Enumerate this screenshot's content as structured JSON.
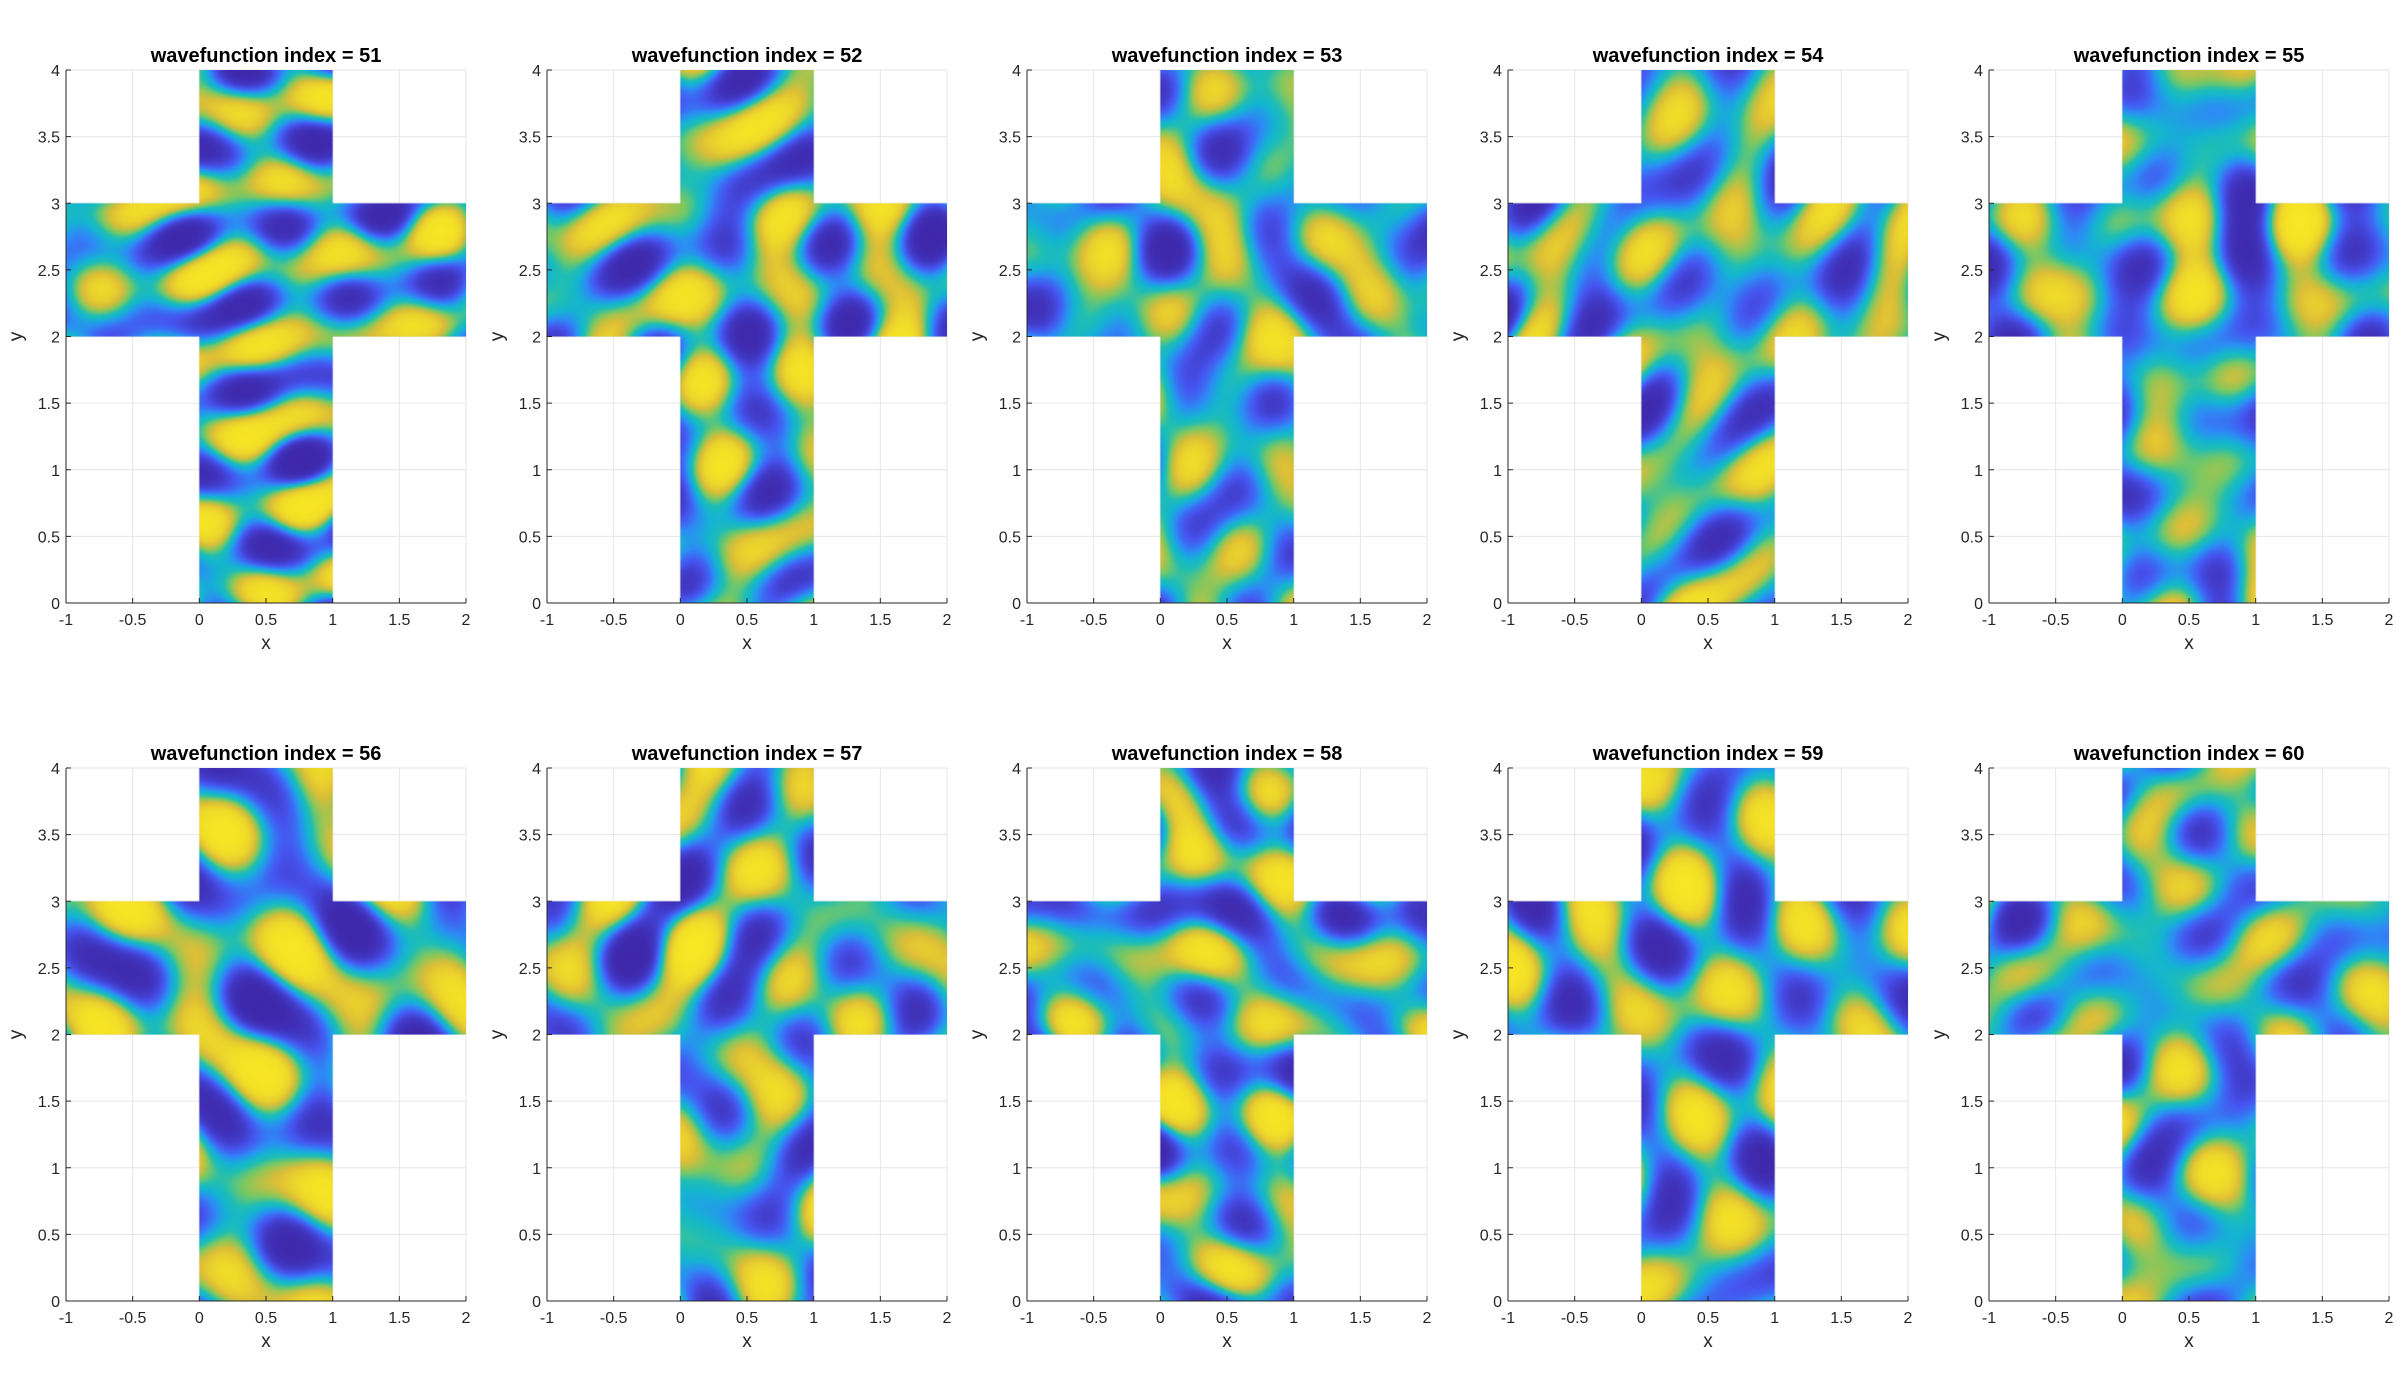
{
  "chart_data": [
    {
      "type": "heatmap",
      "title": "wavefunction index = 51",
      "xlabel": "x",
      "ylabel": "y",
      "xlim": [
        -1,
        2
      ],
      "ylim": [
        0,
        4
      ],
      "xticks": [
        "-1",
        "-0.5",
        "0",
        "0.5",
        "1",
        "1.5",
        "2"
      ],
      "yticks": [
        "0",
        "0.5",
        "1",
        "1.5",
        "2",
        "2.5",
        "3",
        "3.5",
        "4"
      ],
      "domain": "cross",
      "grid": true,
      "colormap": "parula"
    },
    {
      "type": "heatmap",
      "title": "wavefunction index = 52",
      "xlabel": "x",
      "ylabel": "y",
      "xlim": [
        -1,
        2
      ],
      "ylim": [
        0,
        4
      ],
      "xticks": [
        "-1",
        "-0.5",
        "0",
        "0.5",
        "1",
        "1.5",
        "2"
      ],
      "yticks": [
        "0",
        "0.5",
        "1",
        "1.5",
        "2",
        "2.5",
        "3",
        "3.5",
        "4"
      ],
      "domain": "cross",
      "grid": true,
      "colormap": "parula"
    },
    {
      "type": "heatmap",
      "title": "wavefunction index = 53",
      "xlabel": "x",
      "ylabel": "y",
      "xlim": [
        -1,
        2
      ],
      "ylim": [
        0,
        4
      ],
      "xticks": [
        "-1",
        "-0.5",
        "0",
        "0.5",
        "1",
        "1.5",
        "2"
      ],
      "yticks": [
        "0",
        "0.5",
        "1",
        "1.5",
        "2",
        "2.5",
        "3",
        "3.5",
        "4"
      ],
      "domain": "cross",
      "grid": true,
      "colormap": "parula"
    },
    {
      "type": "heatmap",
      "title": "wavefunction index = 54",
      "xlabel": "x",
      "ylabel": "y",
      "xlim": [
        -1,
        2
      ],
      "ylim": [
        0,
        4
      ],
      "xticks": [
        "-1",
        "-0.5",
        "0",
        "0.5",
        "1",
        "1.5",
        "2"
      ],
      "yticks": [
        "0",
        "0.5",
        "1",
        "1.5",
        "2",
        "2.5",
        "3",
        "3.5",
        "4"
      ],
      "domain": "cross",
      "grid": true,
      "colormap": "parula"
    },
    {
      "type": "heatmap",
      "title": "wavefunction index = 55",
      "xlabel": "x",
      "ylabel": "y",
      "xlim": [
        -1,
        2
      ],
      "ylim": [
        0,
        4
      ],
      "xticks": [
        "-1",
        "-0.5",
        "0",
        "0.5",
        "1",
        "1.5",
        "2"
      ],
      "yticks": [
        "0",
        "0.5",
        "1",
        "1.5",
        "2",
        "2.5",
        "3",
        "3.5",
        "4"
      ],
      "domain": "cross",
      "grid": true,
      "colormap": "parula"
    },
    {
      "type": "heatmap",
      "title": "wavefunction index = 56",
      "xlabel": "x",
      "ylabel": "y",
      "xlim": [
        -1,
        2
      ],
      "ylim": [
        0,
        4
      ],
      "xticks": [
        "-1",
        "-0.5",
        "0",
        "0.5",
        "1",
        "1.5",
        "2"
      ],
      "yticks": [
        "0",
        "0.5",
        "1",
        "1.5",
        "2",
        "2.5",
        "3",
        "3.5",
        "4"
      ],
      "domain": "cross",
      "grid": true,
      "colormap": "parula"
    },
    {
      "type": "heatmap",
      "title": "wavefunction index = 57",
      "xlabel": "x",
      "ylabel": "y",
      "xlim": [
        -1,
        2
      ],
      "ylim": [
        0,
        4
      ],
      "xticks": [
        "-1",
        "-0.5",
        "0",
        "0.5",
        "1",
        "1.5",
        "2"
      ],
      "yticks": [
        "0",
        "0.5",
        "1",
        "1.5",
        "2",
        "2.5",
        "3",
        "3.5",
        "4"
      ],
      "domain": "cross",
      "grid": true,
      "colormap": "parula"
    },
    {
      "type": "heatmap",
      "title": "wavefunction index = 58",
      "xlabel": "x",
      "ylabel": "y",
      "xlim": [
        -1,
        2
      ],
      "ylim": [
        0,
        4
      ],
      "xticks": [
        "-1",
        "-0.5",
        "0",
        "0.5",
        "1",
        "1.5",
        "2"
      ],
      "yticks": [
        "0",
        "0.5",
        "1",
        "1.5",
        "2",
        "2.5",
        "3",
        "3.5",
        "4"
      ],
      "domain": "cross",
      "grid": true,
      "colormap": "parula"
    },
    {
      "type": "heatmap",
      "title": "wavefunction index = 59",
      "xlabel": "x",
      "ylabel": "y",
      "xlim": [
        -1,
        2
      ],
      "ylim": [
        0,
        4
      ],
      "xticks": [
        "-1",
        "-0.5",
        "0",
        "0.5",
        "1",
        "1.5",
        "2"
      ],
      "yticks": [
        "0",
        "0.5",
        "1",
        "1.5",
        "2",
        "2.5",
        "3",
        "3.5",
        "4"
      ],
      "domain": "cross",
      "grid": true,
      "colormap": "parula"
    },
    {
      "type": "heatmap",
      "title": "wavefunction index = 60",
      "xlabel": "x",
      "ylabel": "y",
      "xlim": [
        -1,
        2
      ],
      "ylim": [
        0,
        4
      ],
      "xticks": [
        "-1",
        "-0.5",
        "0",
        "0.5",
        "1",
        "1.5",
        "2"
      ],
      "yticks": [
        "0",
        "0.5",
        "1",
        "1.5",
        "2",
        "2.5",
        "3",
        "3.5",
        "4"
      ],
      "domain": "cross",
      "grid": true,
      "colormap": "parula"
    }
  ],
  "colors": {
    "background": "#ffffff",
    "grid": "#e6e6e6",
    "axis": "#262626",
    "colormap_low": "#3e26a8",
    "colormap_mid": "#1fb8b6",
    "colormap_high": "#f5c930"
  }
}
